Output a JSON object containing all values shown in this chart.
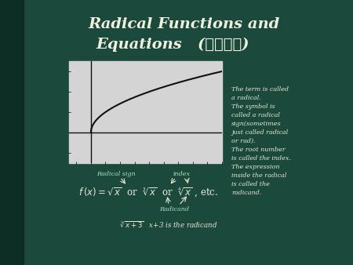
{
  "title_line1": "Radical Functions and",
  "title_line2": "Equations   (무리함수)",
  "bg_color": "#1b4a3c",
  "plot_bg_color": "#d4d4d4",
  "title_color": "#f0f0e0",
  "text_color": "#e8e8d8",
  "green_text_color": "#a8dfc0",
  "right_text": "The term is called\na radical.\nThe symbol is\ncalled a radical\nsign(sometimes\njust called radical\nor rad).\nThe root number\nis called the index.\nThe expression\ninside the radical\nis called the\nradicand.",
  "label_radical_sign": "Radical sign",
  "label_index": "index",
  "label_radicand": "Radicand",
  "plot_xlim": [
    -1.5,
    9
  ],
  "plot_ylim": [
    -1.5,
    3.5
  ],
  "curve_color": "#111111",
  "axis_color": "#111111",
  "border_color": "#0d2e24"
}
